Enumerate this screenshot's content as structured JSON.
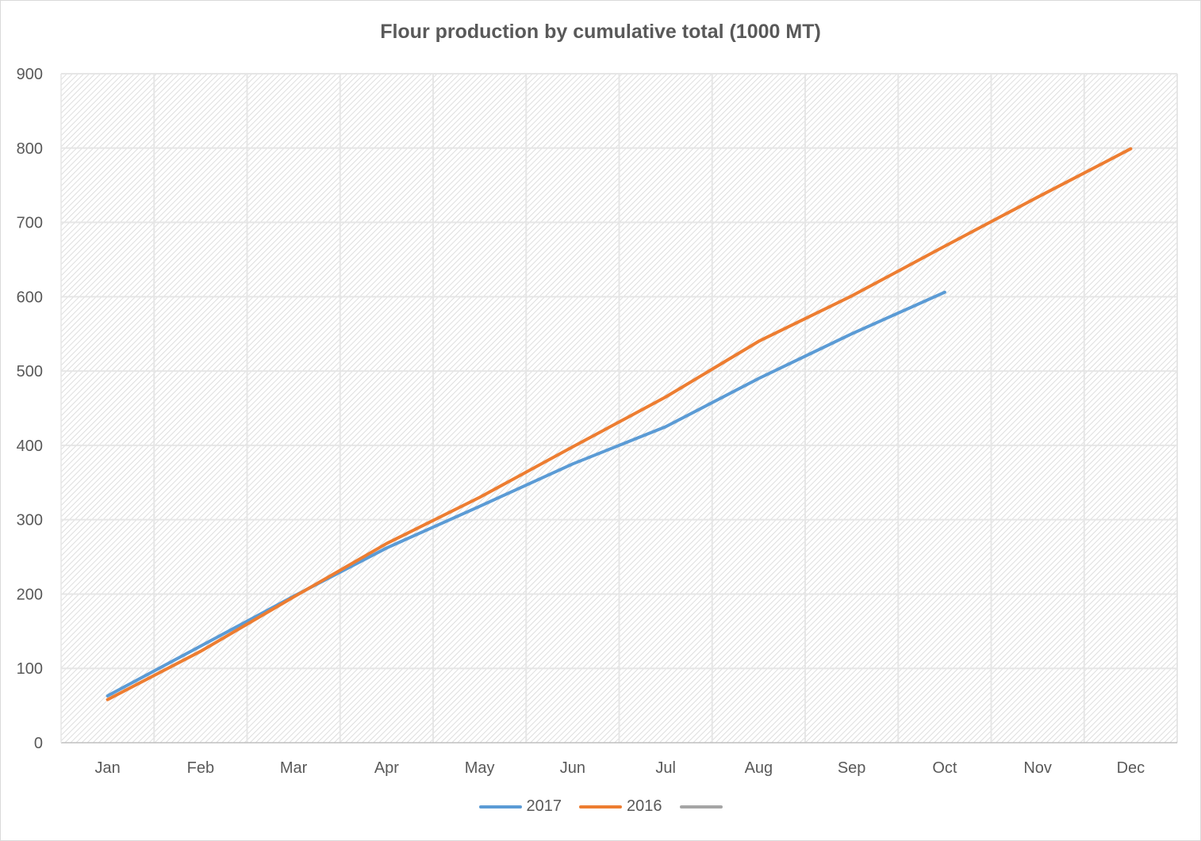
{
  "chart_data": {
    "type": "line",
    "title": "Flour production by cumulative total (1000 MT)",
    "xlabel": "",
    "ylabel": "",
    "categories": [
      "Jan",
      "Feb",
      "Mar",
      "Apr",
      "May",
      "Jun",
      "Jul",
      "Aug",
      "Sep",
      "Oct",
      "Nov",
      "Dec"
    ],
    "ylim": [
      0,
      900
    ],
    "yticks": [
      0,
      100,
      200,
      300,
      400,
      500,
      600,
      700,
      800,
      900
    ],
    "grid": true,
    "legend_position": "bottom",
    "series": [
      {
        "name": "2017",
        "color": "#5b9bd5",
        "values": [
          63,
          130,
          197,
          262,
          318,
          375,
          425,
          490,
          550,
          606,
          null,
          null
        ]
      },
      {
        "name": "2016",
        "color": "#ed7d31",
        "values": [
          58,
          123,
          196,
          268,
          330,
          398,
          465,
          540,
          601,
          668,
          734,
          799
        ]
      },
      {
        "name": "",
        "color": "#a5a5a5",
        "values": [
          null,
          null,
          null,
          null,
          null,
          null,
          null,
          null,
          null,
          null,
          null,
          null
        ]
      }
    ]
  }
}
